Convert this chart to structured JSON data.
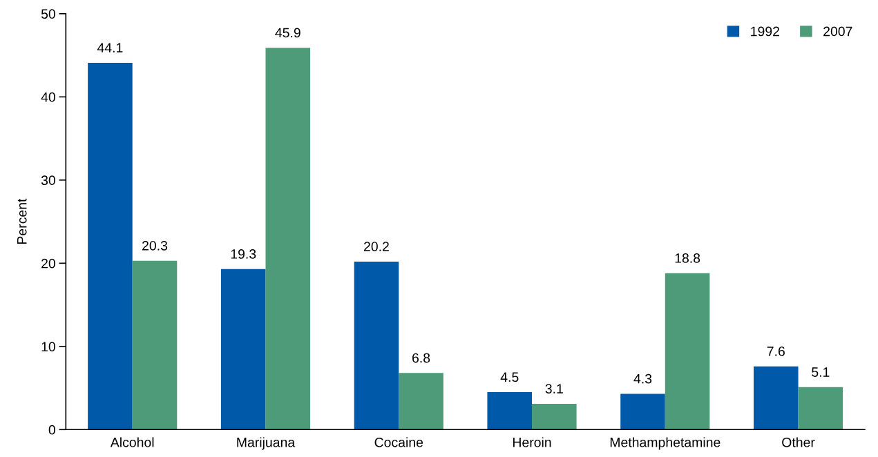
{
  "chart_data": {
    "type": "bar",
    "ylabel": "Percent",
    "categories": [
      "Alcohol",
      "Marijuana",
      "Cocaine",
      "Heroin",
      "Methamphetamine",
      "Other"
    ],
    "series": [
      {
        "name": "1992",
        "color": "#005aa9",
        "values": [
          44.1,
          19.3,
          20.2,
          4.5,
          4.3,
          7.6
        ]
      },
      {
        "name": "2007",
        "color": "#4d9b78",
        "values": [
          20.3,
          45.9,
          6.8,
          3.1,
          18.8,
          5.1
        ]
      }
    ],
    "ylim": [
      0,
      50
    ],
    "yticks": [
      0,
      10,
      20,
      30,
      40,
      50
    ],
    "data_labels": true,
    "legend": "top right",
    "grid": false
  }
}
